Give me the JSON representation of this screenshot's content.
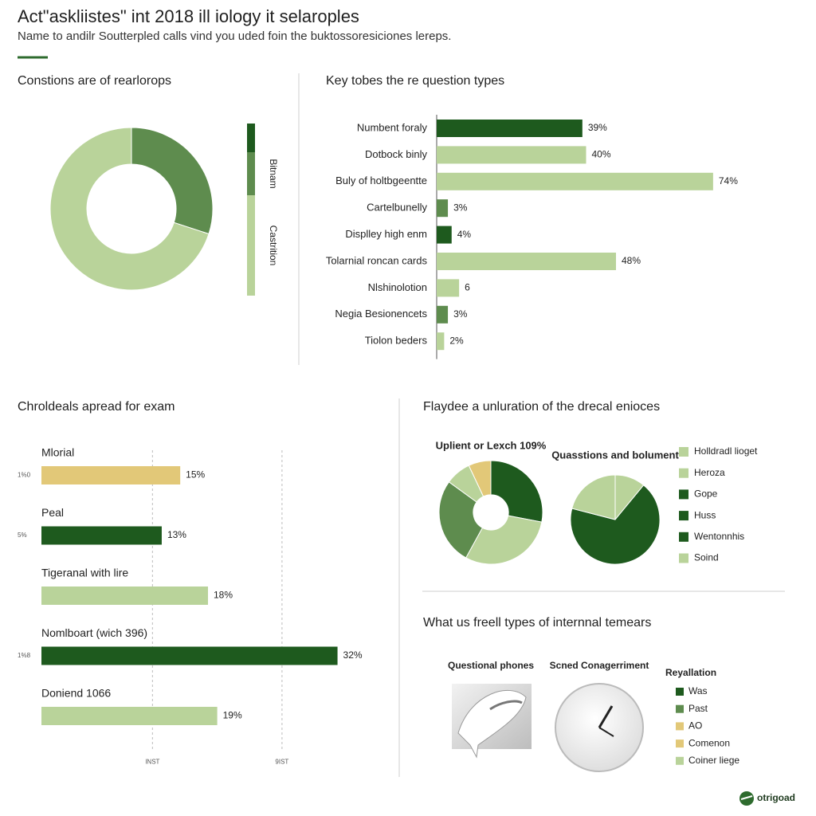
{
  "header": {
    "title": "Act\"askliistes\" int 2018 ill iology it selaroples",
    "subtitle": "Name to andilr Soutterpled calls vind you uded foin the buktossoresiciones lereps."
  },
  "chart_data": [
    {
      "type": "donut",
      "title": "Constions are of rearlorops",
      "categories": [
        "Bitnam",
        "Castrition"
      ],
      "values": [
        30,
        70
      ],
      "colors": [
        "#5e8c4e",
        "#b9d39a"
      ]
    },
    {
      "type": "hbar",
      "title": "Key tobes the re question types",
      "categories": [
        "Numbent foraly",
        "Dotbock binly",
        "Buly of holtbgeentte",
        "Cartelbunelly",
        "Displley high enm",
        "Tolarnial roncan cards",
        "Nlshinolotion",
        "Negia Besionencets",
        "Tiolon beders"
      ],
      "values": [
        39,
        40,
        74,
        3,
        4,
        48,
        6,
        3,
        2
      ],
      "value_labels": [
        "39%",
        "40%",
        "74%",
        "3%",
        "4%",
        "48%",
        "6",
        "3%",
        "2%"
      ],
      "colors": [
        "#1e5a1e",
        "#b9d39a",
        "#b9d39a",
        "#5e8c4e",
        "#1e5a1e",
        "#b9d39a",
        "#b9d39a",
        "#5e8c4e",
        "#b9d39a"
      ],
      "xlim": [
        0,
        80
      ]
    },
    {
      "type": "hbar",
      "title": "Chroldeals apread for exam",
      "categories": [
        "Mlorial",
        "Peal",
        "Tigeranal with lire",
        "Nomlboart (wich 396)",
        "Doniend 1066"
      ],
      "values": [
        15,
        13,
        18,
        32,
        19
      ],
      "value_labels": [
        "15%",
        "13%",
        "18%",
        "32%",
        "19%"
      ],
      "side_labels": [
        "1%0",
        "5%",
        null,
        "1%8",
        null
      ],
      "colors": [
        "#e2c878",
        "#1e5a1e",
        "#b9d39a",
        "#1e5a1e",
        "#b9d39a"
      ],
      "xlim": [
        0,
        36
      ],
      "xticks": [
        {
          "value": 12,
          "label": "INST"
        },
        {
          "value": 26,
          "label": "9IST"
        }
      ]
    },
    {
      "type": "pies",
      "title": "Flaydee a unluration of the drecal enioces",
      "pies": [
        {
          "title": "Uplient or Lexch 109%",
          "values": [
            28,
            30,
            27,
            8,
            7
          ],
          "colors": [
            "#1e5a1e",
            "#b9d39a",
            "#5e8c4e",
            "#b9d39a",
            "#e2c878"
          ],
          "hole": true
        },
        {
          "title": "Quasstions and bolument",
          "values": [
            11,
            68,
            21
          ],
          "colors": [
            "#b9d39a",
            "#1e5a1e",
            "#b9d39a"
          ],
          "hole": false
        }
      ],
      "legend": [
        {
          "name": "Holldradl lioget",
          "color": "#b9d39a"
        },
        {
          "name": "Heroza",
          "color": "#b9d39a"
        },
        {
          "name": "Gope",
          "color": "#1e5a1e"
        },
        {
          "name": "Huss",
          "color": "#1e5a1e"
        },
        {
          "name": "Wentonnhis",
          "color": "#1e5a1e"
        },
        {
          "name": "Soind",
          "color": "#b9d39a"
        }
      ]
    },
    {
      "type": "illustration",
      "title": "What us freell types of internnal temears",
      "items": [
        "Questional phones",
        "Scned Conagerriment"
      ],
      "legend_title": "Reyallation",
      "legend": [
        {
          "name": "Was",
          "color": "#1e5a1e"
        },
        {
          "name": "Past",
          "color": "#5e8c4e"
        },
        {
          "name": "AO",
          "color": "#e2c878"
        },
        {
          "name": "Comenon",
          "color": "#e2c878"
        },
        {
          "name": "Coiner liege",
          "color": "#b9d39a"
        }
      ]
    }
  ],
  "footer": {
    "logo": "otrigoad"
  }
}
